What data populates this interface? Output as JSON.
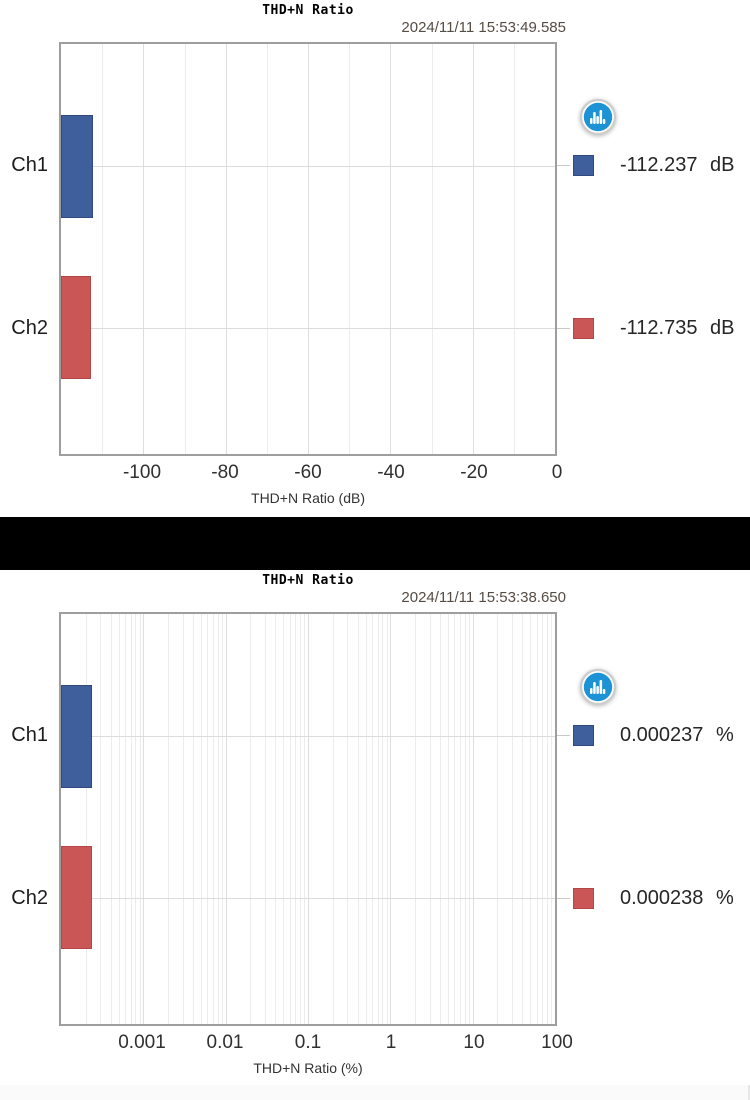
{
  "page": {
    "background": "#FFFFFF",
    "separator_color": "#000000",
    "bottom_strip_color": "#FAFAFA"
  },
  "chart_data": [
    {
      "type": "bar",
      "orientation": "horizontal",
      "title": "THD+N Ratio",
      "timestamp": "2024/11/11 15:53:49.585",
      "categories": [
        "Ch1",
        "Ch2"
      ],
      "values": [
        -112.237,
        -112.735
      ],
      "value_labels": [
        "-112.237 dB",
        "-112.735 dB"
      ],
      "xlabel": "THD+N Ratio (dB)",
      "bar_colors": [
        "#3F5E9C",
        "#CB5656"
      ],
      "bar_border_colors": [
        "#32497E",
        "#B34747"
      ],
      "legend_position": "right",
      "grid": true,
      "axis": {
        "type": "linear",
        "min": -120,
        "max": 0,
        "minor_step": 10,
        "ticks": [
          -100,
          -80,
          -60,
          -40,
          -20,
          0
        ],
        "tick_labels": [
          "-100",
          "-80",
          "-60",
          "-40",
          "-20",
          "0"
        ]
      }
    },
    {
      "type": "bar",
      "orientation": "horizontal",
      "title": "THD+N Ratio",
      "timestamp": "2024/11/11 15:53:38.650",
      "categories": [
        "Ch1",
        "Ch2"
      ],
      "values": [
        0.000237,
        0.000238
      ],
      "value_labels": [
        "0.000237 %",
        "0.000238 %"
      ],
      "xlabel": "THD+N Ratio (%)",
      "bar_colors": [
        "#3F5E9C",
        "#CB5656"
      ],
      "bar_border_colors": [
        "#32497E",
        "#B34747"
      ],
      "legend_position": "right",
      "grid": true,
      "axis": {
        "type": "log",
        "min": 0.0001,
        "max": 100,
        "ticks": [
          0.001,
          0.01,
          0.1,
          1,
          10,
          100
        ],
        "tick_labels": [
          "0.001",
          "0.01",
          "0.1",
          "1",
          "10",
          "100"
        ]
      }
    }
  ],
  "icons": {
    "analyzer_logo": {
      "name": "bar-chart-logo",
      "circle_color": "#1D93D6",
      "ring_color": "#CDCDCD",
      "glyph_color": "#FFFFFF"
    }
  }
}
